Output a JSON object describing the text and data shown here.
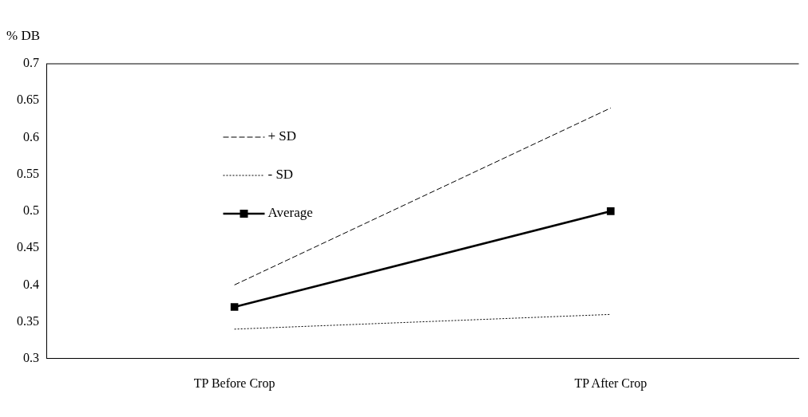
{
  "chart_data": {
    "type": "line",
    "ylabel": "% DB",
    "categories": [
      "TP Before Crop",
      "TP After Crop"
    ],
    "series": [
      {
        "name": "+ SD",
        "color": "#000000",
        "values": [
          0.4,
          0.64
        ],
        "line_style": "dashed",
        "marker": "none"
      },
      {
        "name": "- SD",
        "color": "#000000",
        "values": [
          0.34,
          0.36
        ],
        "line_style": "dotted",
        "marker": "none"
      },
      {
        "name": "Average",
        "color": "#000000",
        "values": [
          0.37,
          0.5
        ],
        "line_style": "solid",
        "marker": "square"
      }
    ],
    "ylim": [
      0.3,
      0.7
    ],
    "yticks": [
      0.3,
      0.35,
      0.4,
      0.45,
      0.5,
      0.55,
      0.6,
      0.65,
      0.7
    ],
    "grid": false,
    "legend": "top left"
  }
}
